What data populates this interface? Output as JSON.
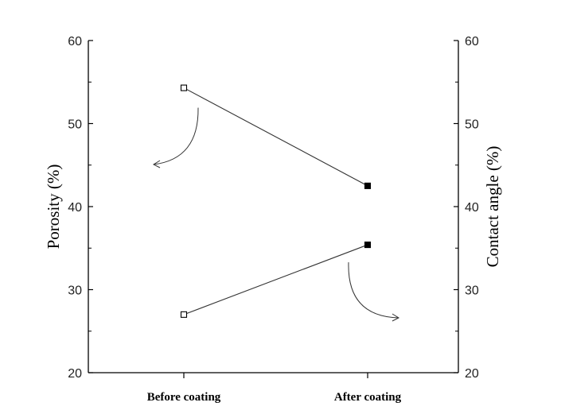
{
  "chart_data": {
    "type": "line",
    "categories": [
      "Before coating",
      "After coating"
    ],
    "ylabel_left": "Porosity (%)",
    "ylabel_right": "Contact angle (%)",
    "ylim_left": [
      20,
      60
    ],
    "ylim_right": [
      20,
      60
    ],
    "yticks": [
      "20",
      "30",
      "40",
      "50",
      "60"
    ],
    "grid": false,
    "series": [
      {
        "values": [
          54.3,
          42.5
        ],
        "axis": "left"
      },
      {
        "values": [
          27.0,
          35.4
        ],
        "axis": "right"
      }
    ],
    "markers": {
      "before": "open-square",
      "after": "filled-square"
    },
    "annotations": [
      {
        "type": "arrow",
        "from_series": 0,
        "direction": "left-axis"
      },
      {
        "type": "arrow",
        "from_series": 1,
        "direction": "right-axis"
      }
    ]
  }
}
